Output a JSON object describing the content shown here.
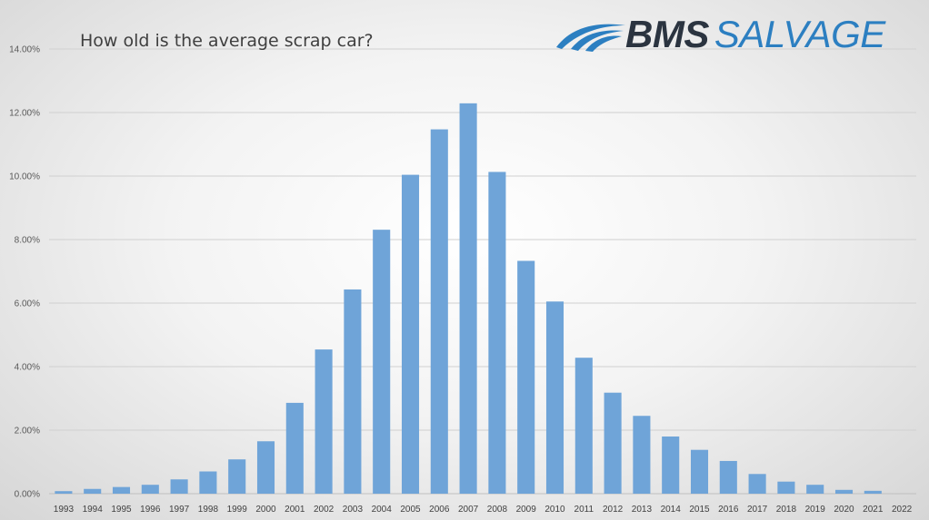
{
  "brand": {
    "name_bold": "BMS",
    "name_light": "SALVAGE",
    "primary_color": "#2b3440",
    "accent_color": "#2c7fc1",
    "icon": "swoosh-logo-icon"
  },
  "chart_data": {
    "type": "bar",
    "title": "How old is the average scrap car?",
    "xlabel": "",
    "ylabel": "",
    "categories": [
      "1993",
      "1994",
      "1995",
      "1996",
      "1997",
      "1998",
      "1999",
      "2000",
      "2001",
      "2002",
      "2003",
      "2004",
      "2005",
      "2006",
      "2007",
      "2008",
      "2009",
      "2010",
      "2011",
      "2012",
      "2013",
      "2014",
      "2015",
      "2016",
      "2017",
      "2018",
      "2019",
      "2020",
      "2021",
      "2022"
    ],
    "values": [
      0.08,
      0.15,
      0.21,
      0.28,
      0.45,
      0.7,
      1.08,
      1.65,
      2.86,
      4.54,
      6.43,
      8.31,
      10.04,
      11.47,
      12.29,
      10.13,
      7.33,
      6.05,
      4.28,
      3.18,
      2.45,
      1.8,
      1.38,
      1.03,
      0.62,
      0.38,
      0.28,
      0.12,
      0.09,
      0.0
    ],
    "ylim": [
      0,
      14
    ],
    "yticks": [
      "0.00%",
      "2.00%",
      "4.00%",
      "6.00%",
      "8.00%",
      "10.00%",
      "12.00%",
      "14.00%"
    ],
    "grid": true,
    "legend": "none",
    "bar_color": "#6fa4d8"
  }
}
